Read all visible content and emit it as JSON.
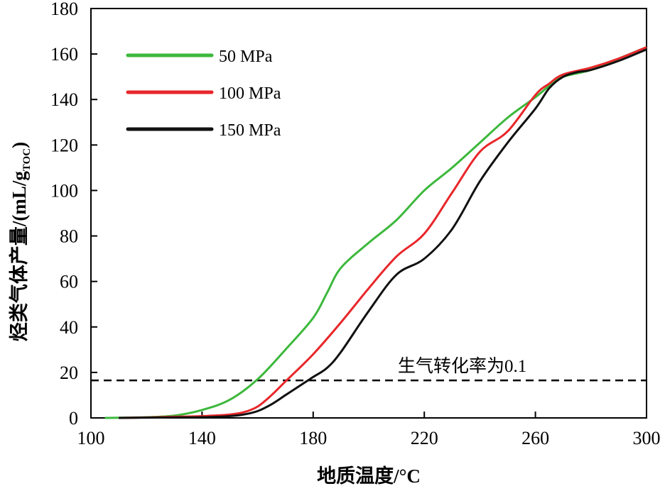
{
  "chart_data": {
    "type": "line",
    "title": "",
    "xlabel": "地质温度/°C",
    "ylabel": "烃类气体产量/(mL/g",
    "ylabel_subscript": "TOC",
    "ylabel_suffix": ")",
    "xlim": [
      100,
      300
    ],
    "ylim": [
      0,
      180
    ],
    "xticks": [
      100,
      140,
      180,
      220,
      260,
      300
    ],
    "yticks": [
      0,
      20,
      40,
      60,
      80,
      100,
      120,
      140,
      160,
      180
    ],
    "grid": false,
    "legend_position": "top-left",
    "series": [
      {
        "name": "50 MPa",
        "color": "#3cb83c",
        "x": [
          105,
          120,
          130,
          140,
          150,
          160,
          170,
          180,
          185,
          190,
          200,
          210,
          220,
          230,
          240,
          250,
          260,
          265,
          270,
          280,
          290,
          300
        ],
        "y": [
          0,
          0.3,
          1,
          3.5,
          8,
          17,
          30,
          44,
          55,
          66,
          77,
          87,
          100,
          110,
          121,
          132,
          141,
          146,
          150,
          153,
          158,
          163
        ]
      },
      {
        "name": "100 MPa",
        "color": "#e8262a",
        "x": [
          110,
          120,
          130,
          140,
          150,
          155,
          160,
          165,
          170,
          180,
          190,
          200,
          210,
          220,
          230,
          240,
          250,
          260,
          265,
          270,
          280,
          290,
          300
        ],
        "y": [
          0,
          0.2,
          0.5,
          0.8,
          1.5,
          2.5,
          5,
          10,
          16,
          28,
          42,
          57,
          71,
          81,
          99,
          117,
          126,
          142,
          147,
          151,
          154,
          158,
          163
        ]
      },
      {
        "name": "150 MPa",
        "color": "#111111",
        "x": [
          110,
          120,
          130,
          140,
          150,
          155,
          160,
          165,
          170,
          175,
          180,
          185,
          190,
          200,
          210,
          220,
          230,
          240,
          250,
          260,
          265,
          270,
          275,
          280,
          290,
          300
        ],
        "y": [
          0,
          0.1,
          0.2,
          0.3,
          0.8,
          1.5,
          3,
          6,
          10,
          14,
          18,
          22,
          29,
          47,
          63,
          70,
          83,
          104,
          121,
          136,
          145,
          150,
          152,
          153,
          157,
          162
        ]
      }
    ],
    "reference_line": {
      "y": 16.5,
      "label": "生气转化率为0.1",
      "style": "dashed",
      "color": "#000000"
    }
  }
}
